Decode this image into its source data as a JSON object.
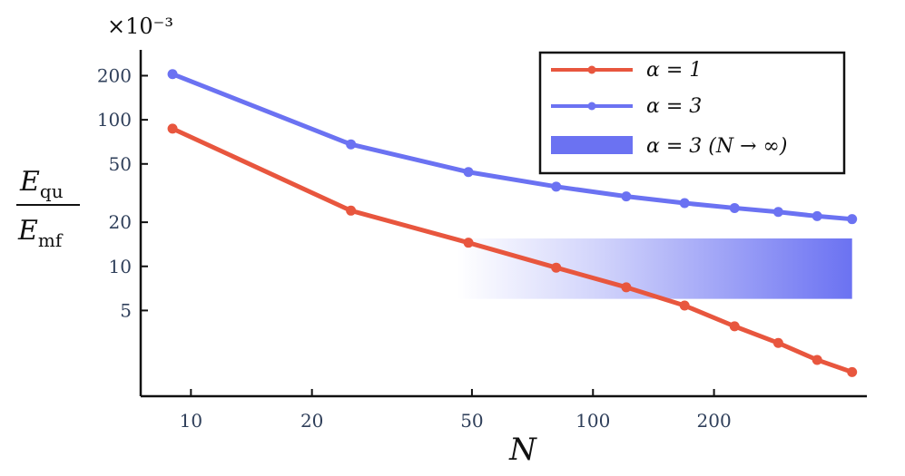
{
  "chart_data": {
    "type": "line",
    "multiplier_label": "×10⁻³",
    "xlabel": "N",
    "ylabel": {
      "numerator": "E",
      "numerator_sub": "qu",
      "denominator": "E",
      "denominator_sub": "mf"
    },
    "x_scale": "log",
    "y_scale": "log",
    "xlim": [
      7.5,
      480
    ],
    "ylim": [
      1.3,
      300
    ],
    "x_ticks": [
      10,
      20,
      50,
      100,
      200
    ],
    "x_tick_labels": [
      "10",
      "20",
      "50",
      "100",
      "200"
    ],
    "y_ticks": [
      5,
      10,
      20,
      50,
      100,
      200
    ],
    "y_tick_labels": [
      "5",
      "10",
      "20",
      "50",
      "100",
      "200"
    ],
    "series": [
      {
        "name": "α = 1",
        "color": "#e8563e",
        "x": [
          9,
          25,
          49,
          81,
          121,
          169,
          225,
          289,
          361,
          441
        ],
        "y": [
          87,
          24,
          14.5,
          9.8,
          7.2,
          5.4,
          3.9,
          3.0,
          2.3,
          1.9
        ]
      },
      {
        "name": "α = 3",
        "color": "#6b72f2",
        "x": [
          9,
          25,
          49,
          81,
          121,
          169,
          225,
          289,
          361,
          441
        ],
        "y": [
          205,
          68,
          44,
          35,
          30,
          27,
          25,
          23.5,
          22,
          21
        ]
      }
    ],
    "band": {
      "name": "α = 3 (N → ∞)",
      "color": "#6b72f2",
      "x_range": [
        46,
        441
      ],
      "y_range": [
        6,
        15.5
      ]
    },
    "legend_placement": "top-right",
    "grid": false
  }
}
